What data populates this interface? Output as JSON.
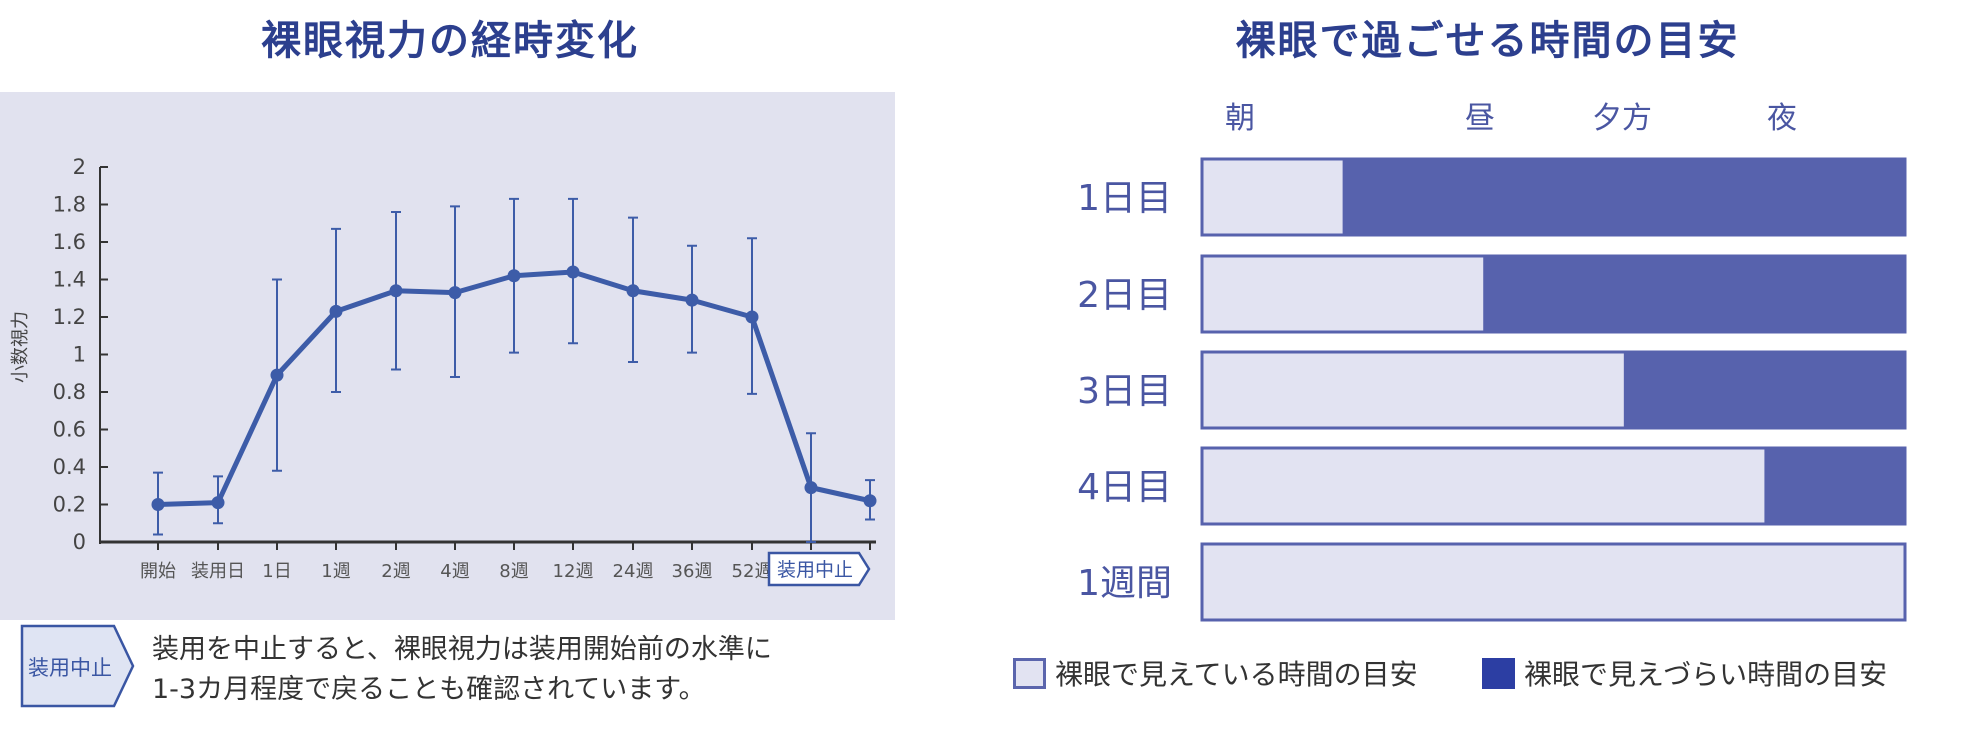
{
  "chart_data": [
    {
      "type": "line",
      "title": "裸眼視力の経時変化",
      "ylabel": "小数視力",
      "ylim": [
        0,
        2
      ],
      "yticks": [
        "0",
        "0.2",
        "0.4",
        "0.6",
        "0.8",
        "1",
        "1.2",
        "1.4",
        "1.6",
        "1.8",
        "2"
      ],
      "categories": [
        "開始",
        "装用日",
        "1日",
        "1週",
        "2週",
        "4週",
        "8週",
        "12週",
        "24週",
        "36週",
        "52週",
        "装用中止",
        ""
      ],
      "series": [
        {
          "values": [
            0.2,
            0.21,
            0.89,
            1.23,
            1.34,
            1.33,
            1.42,
            1.44,
            1.34,
            1.29,
            1.2,
            0.29,
            0.22
          ],
          "error_low": [
            0.04,
            0.1,
            0.38,
            0.8,
            0.92,
            0.88,
            1.01,
            1.06,
            0.96,
            1.01,
            0.79,
            0.0,
            0.12
          ],
          "error_high": [
            0.37,
            0.35,
            1.4,
            1.67,
            1.76,
            1.79,
            1.83,
            1.83,
            1.73,
            1.58,
            1.62,
            0.58,
            0.33
          ]
        }
      ],
      "grid": false,
      "stop_marker_label": "装用中止"
    },
    {
      "type": "bar",
      "orientation": "horizontal",
      "stacked": true,
      "title": "裸眼で過ごせる時間の目安",
      "time_labels": [
        "朝",
        "昼",
        "夕方",
        "夜"
      ],
      "categories": [
        "1日目",
        "2日目",
        "3日目",
        "4日目",
        "1週間"
      ],
      "series": [
        {
          "name": "裸眼で見えている時間の目安",
          "values": [
            0.2,
            0.4,
            0.6,
            0.8,
            1.0
          ],
          "color": "#e2e3f2"
        },
        {
          "name": "裸眼で見えづらい時間の目安",
          "values": [
            0.8,
            0.6,
            0.4,
            0.2,
            0.0
          ],
          "color": "#5762ad"
        }
      ],
      "legend": "bottom"
    }
  ],
  "note": {
    "badge": "装用中止",
    "line1": "装用を中止すると、裸眼視力は装用開始前の水準に",
    "line2": "1-3カ月程度で戻ることも確認されています。"
  },
  "legend_items": [
    {
      "label": "裸眼で見えている時間の目安"
    },
    {
      "label": "裸眼で見えづらい時間の目安"
    }
  ],
  "colors": {
    "panel_bg": "#e1e2ef",
    "line": "#3d5ca8",
    "bar_dark": "#5762ad",
    "bar_light": "#e2e3f2",
    "title": "#2c3f8e"
  }
}
